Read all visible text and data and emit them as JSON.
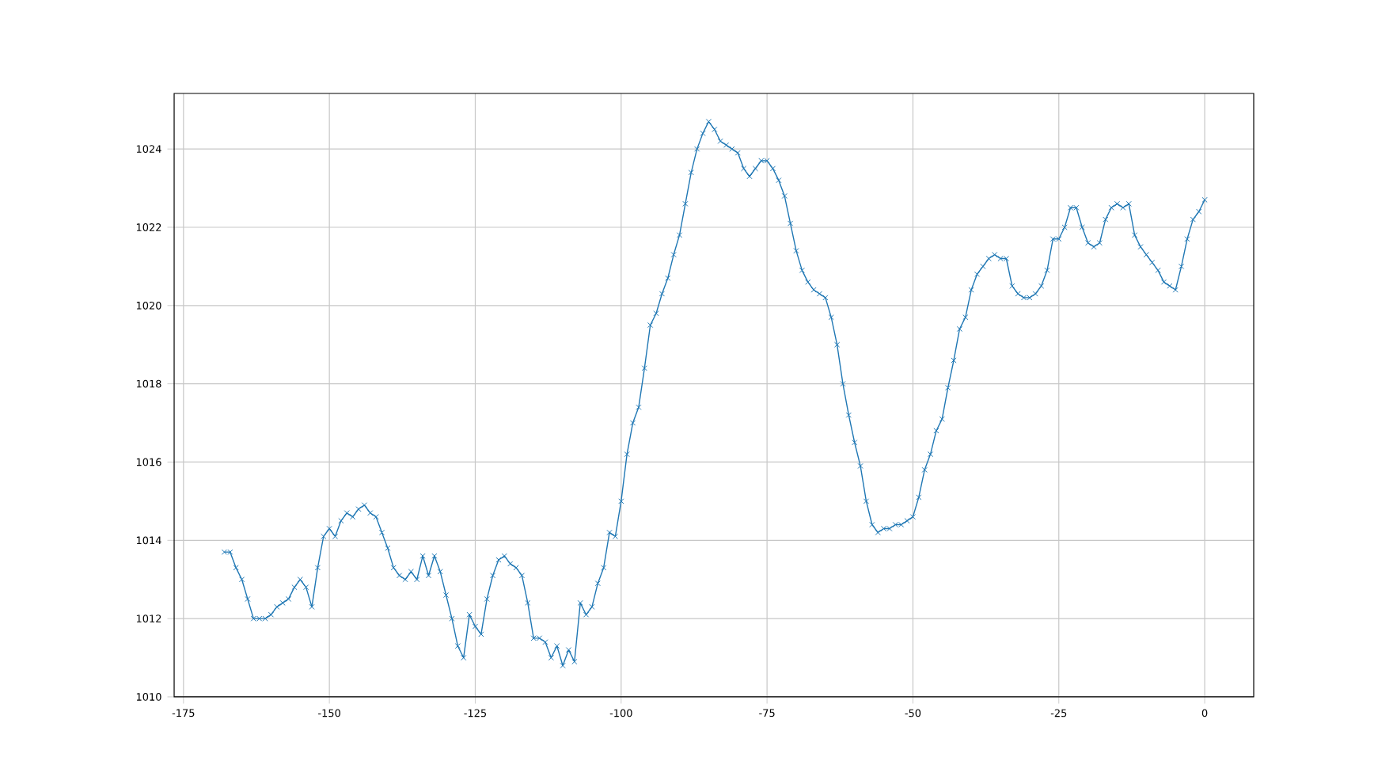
{
  "chart_data": {
    "type": "line",
    "color": "#1f77b4",
    "marker": "cross",
    "line_style": "solid",
    "grid": true,
    "xlim": [
      -176.6,
      8.4
    ],
    "ylim": [
      1010,
      1025.42
    ],
    "xticks": [
      -175,
      -150,
      -125,
      -100,
      -75,
      -50,
      -25,
      0
    ],
    "yticks": [
      1010,
      1012,
      1014,
      1016,
      1018,
      1020,
      1022,
      1024
    ],
    "x": [
      -168,
      -167,
      -166,
      -165,
      -164,
      -163,
      -162,
      -161,
      -160,
      -159,
      -158,
      -157,
      -156,
      -155,
      -154,
      -153,
      -152,
      -151,
      -150,
      -149,
      -148,
      -147,
      -146,
      -145,
      -144,
      -143,
      -142,
      -141,
      -140,
      -139,
      -138,
      -137,
      -136,
      -135,
      -134,
      -133,
      -132,
      -131,
      -130,
      -129,
      -128,
      -127,
      -126,
      -125,
      -124,
      -123,
      -122,
      -121,
      -120,
      -119,
      -118,
      -117,
      -116,
      -115,
      -114,
      -113,
      -112,
      -111,
      -110,
      -109,
      -108,
      -107,
      -106,
      -105,
      -104,
      -103,
      -102,
      -101,
      -100,
      -99,
      -98,
      -97,
      -96,
      -95,
      -94,
      -93,
      -92,
      -91,
      -90,
      -89,
      -88,
      -87,
      -86,
      -85,
      -84,
      -83,
      -82,
      -81,
      -80,
      -79,
      -78,
      -77,
      -76,
      -75,
      -74,
      -73,
      -72,
      -71,
      -70,
      -69,
      -68,
      -67,
      -66,
      -65,
      -64,
      -63,
      -62,
      -61,
      -60,
      -59,
      -58,
      -57,
      -56,
      -55,
      -54,
      -53,
      -52,
      -51,
      -50,
      -49,
      -48,
      -47,
      -46,
      -45,
      -44,
      -43,
      -42,
      -41,
      -40,
      -39,
      -38,
      -37,
      -36,
      -35,
      -34,
      -33,
      -32,
      -31,
      -30,
      -29,
      -28,
      -27,
      -26,
      -25,
      -24,
      -23,
      -22,
      -21,
      -20,
      -19,
      -18,
      -17,
      -16,
      -15,
      -14,
      -13,
      -12,
      -11,
      -10,
      -9,
      -8,
      -7,
      -6,
      -5,
      -4,
      -3,
      -2,
      -1,
      0
    ],
    "values": [
      1013.7,
      1013.7,
      1013.3,
      1013.0,
      1012.5,
      1012.0,
      1012.0,
      1012.0,
      1012.1,
      1012.3,
      1012.4,
      1012.5,
      1012.8,
      1013.0,
      1012.8,
      1012.3,
      1013.3,
      1014.1,
      1014.3,
      1014.1,
      1014.5,
      1014.7,
      1014.6,
      1014.8,
      1014.9,
      1014.7,
      1014.6,
      1014.2,
      1013.8,
      1013.3,
      1013.1,
      1013.0,
      1013.2,
      1013.0,
      1013.6,
      1013.1,
      1013.6,
      1013.2,
      1012.6,
      1012.0,
      1011.3,
      1011.0,
      1012.1,
      1011.8,
      1011.6,
      1012.5,
      1013.1,
      1013.5,
      1013.6,
      1013.4,
      1013.3,
      1013.1,
      1012.4,
      1011.5,
      1011.5,
      1011.4,
      1011.0,
      1011.3,
      1010.8,
      1011.2,
      1010.9,
      1012.4,
      1012.1,
      1012.3,
      1012.9,
      1013.3,
      1014.2,
      1014.1,
      1015.0,
      1016.2,
      1017.0,
      1017.4,
      1018.4,
      1019.5,
      1019.8,
      1020.3,
      1020.7,
      1021.3,
      1021.8,
      1022.6,
      1023.4,
      1024.0,
      1024.4,
      1024.7,
      1024.5,
      1024.2,
      1024.1,
      1024.0,
      1023.9,
      1023.5,
      1023.3,
      1023.5,
      1023.7,
      1023.7,
      1023.5,
      1023.2,
      1022.8,
      1022.1,
      1021.4,
      1020.9,
      1020.6,
      1020.4,
      1020.3,
      1020.2,
      1019.7,
      1019.0,
      1018.0,
      1017.2,
      1016.5,
      1015.9,
      1015.0,
      1014.4,
      1014.2,
      1014.3,
      1014.3,
      1014.4,
      1014.4,
      1014.5,
      1014.6,
      1015.1,
      1015.8,
      1016.2,
      1016.8,
      1017.1,
      1017.9,
      1018.6,
      1019.4,
      1019.7,
      1020.4,
      1020.8,
      1021.0,
      1021.2,
      1021.3,
      1021.2,
      1021.2,
      1020.5,
      1020.3,
      1020.2,
      1020.2,
      1020.3,
      1020.5,
      1020.9,
      1021.7,
      1021.7,
      1022.0,
      1022.5,
      1022.5,
      1022.0,
      1021.6,
      1021.5,
      1021.6,
      1022.2,
      1022.5,
      1022.6,
      1022.5,
      1022.6,
      1021.8,
      1021.5,
      1021.3,
      1021.1,
      1020.9,
      1020.6,
      1020.5,
      1020.4,
      1021.0,
      1021.7,
      1022.2,
      1022.4,
      1022.7
    ]
  }
}
